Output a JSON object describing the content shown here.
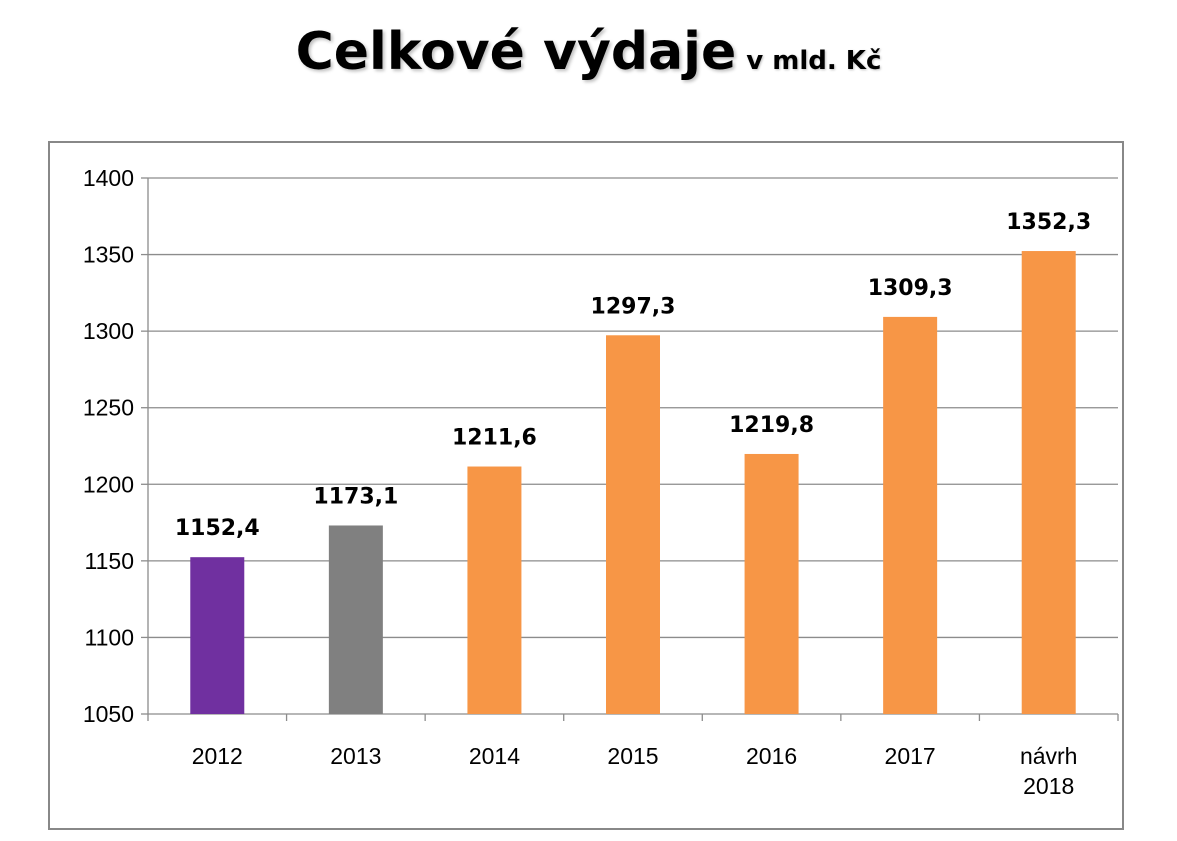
{
  "title": {
    "main": "Celkové výdaje",
    "sub": "v mld. Kč"
  },
  "chart_data": {
    "type": "bar",
    "title": "Celkové výdaje v mld. Kč",
    "categories": [
      [
        "2012"
      ],
      [
        "2013"
      ],
      [
        "2014"
      ],
      [
        "2015"
      ],
      [
        "2016"
      ],
      [
        "2017"
      ],
      [
        "návrh",
        "2018"
      ]
    ],
    "values": [
      1152.4,
      1173.1,
      1211.6,
      1297.3,
      1219.8,
      1309.3,
      1352.3
    ],
    "value_labels": [
      "1152,4",
      "1173,1",
      "1211,6",
      "1297,3",
      "1219,8",
      "1309,3",
      "1352,3"
    ],
    "colors": [
      "#7030A0",
      "#808080",
      "#F79646",
      "#F79646",
      "#F79646",
      "#F79646",
      "#F79646"
    ],
    "ylim": [
      1050,
      1400
    ],
    "yticks": [
      1050,
      1100,
      1150,
      1200,
      1250,
      1300,
      1350,
      1400
    ],
    "grid": true,
    "legend": "none",
    "xlabel": "",
    "ylabel": ""
  }
}
